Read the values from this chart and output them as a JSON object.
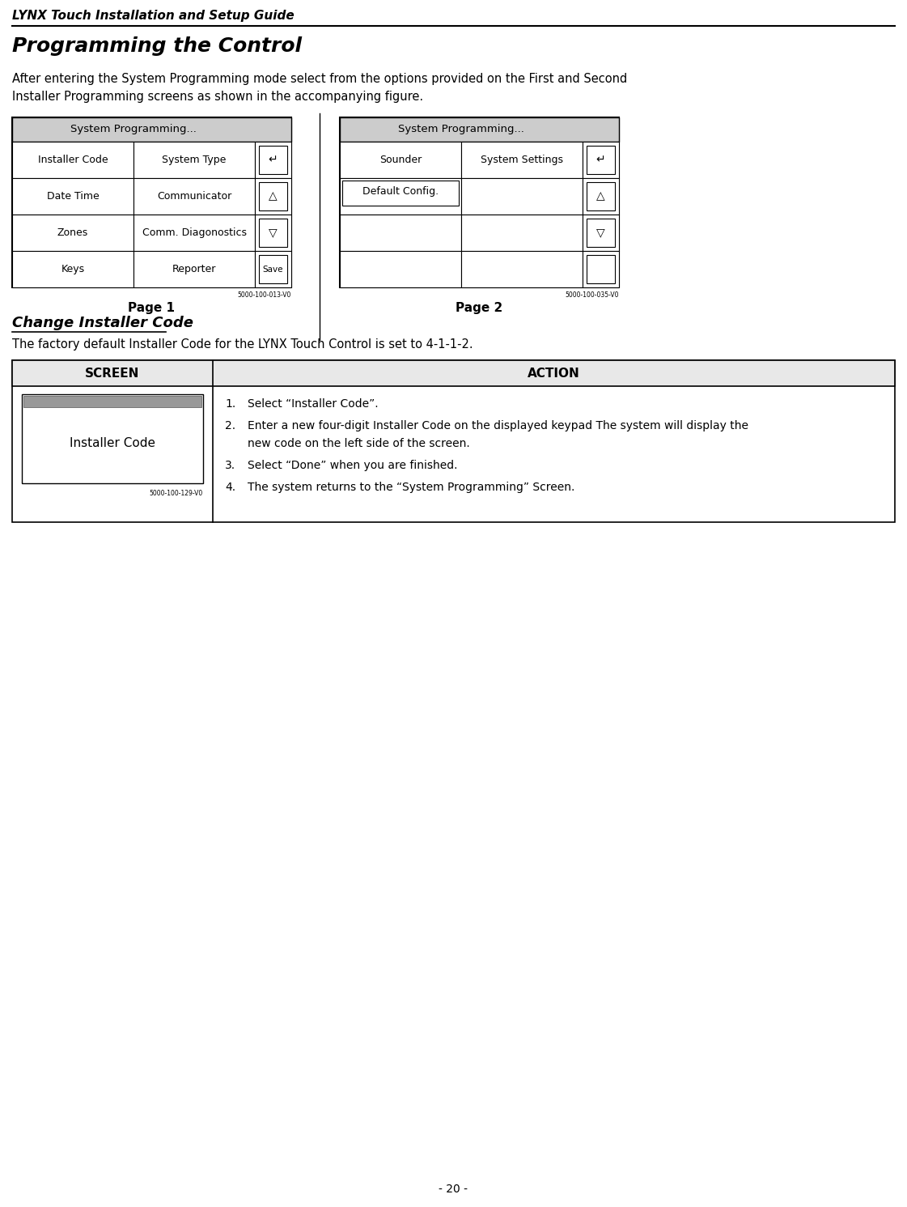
{
  "title_header": "LYNX Touch Installation and Setup Guide",
  "section_title": "Programming the Control",
  "intro_line1": "After entering the System Programming mode select from the options provided on the First and Second",
  "intro_line2": "Installer Programming screens as shown in the accompanying figure.",
  "page1_header": "System Programming...",
  "page1_rows": [
    [
      "Installer Code",
      "System Type"
    ],
    [
      "Date Time",
      "Communicator"
    ],
    [
      "Zones",
      "Comm. Diagonostics"
    ],
    [
      "Keys",
      "Reporter"
    ]
  ],
  "page1_buttons": [
    "↵",
    "△",
    "▽",
    "Save"
  ],
  "page1_label": "5000-100-013-V0",
  "page1_caption": "Page 1",
  "page2_header": "System Programming...",
  "page2_rows": [
    [
      "Sounder",
      "System Settings"
    ],
    [
      "Default Config.",
      ""
    ],
    [
      "",
      ""
    ],
    [
      "",
      ""
    ]
  ],
  "page2_buttons": [
    "↵",
    "△",
    "▽",
    ""
  ],
  "page2_label": "5000-100-035-V0",
  "page2_caption": "Page 2",
  "section2_title": "Change Installer Code",
  "section2_intro": "The factory default Installer Code for the LYNX Touch Control is set to 4-1-1-2.",
  "table_col1_header": "SCREEN",
  "table_col2_header": "ACTION",
  "screen_label": "Installer Code",
  "screen_sublabel": "5000-100-129-V0",
  "action_items": [
    "Select “Installer Code”.",
    "Enter a new four-digit Installer Code on the displayed keypad The system will display the new code on the left side of the screen.",
    "Select “Done” when you are finished.",
    "The system returns to the “System Programming” Screen."
  ],
  "footer_text": "- 20 -",
  "bg_color": "#ffffff",
  "text_color": "#000000"
}
